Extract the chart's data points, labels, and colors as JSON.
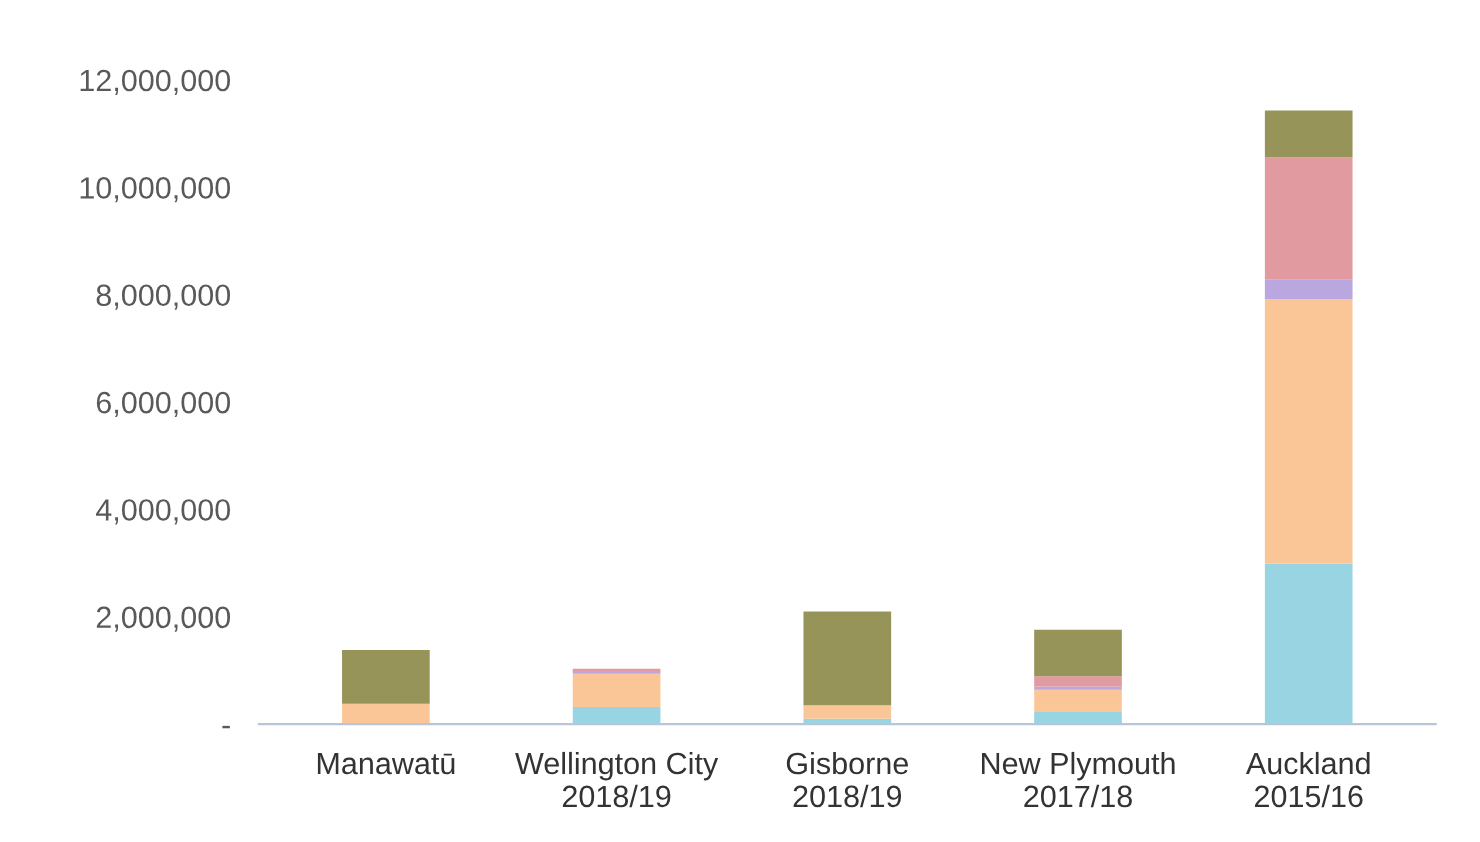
{
  "chart_data": {
    "type": "bar",
    "stacked": true,
    "categories": [
      "Manawatū",
      "Wellington City\n2018/19",
      "Gisborne\n2018/19",
      "New Plymouth\n2017/18",
      "Auckland\n2015/16"
    ],
    "series": [
      {
        "color": "#8ecfe0",
        "values": [
          0,
          320000,
          100000,
          240000,
          2990000
        ]
      },
      {
        "color": "#fbc08c",
        "values": [
          380000,
          620000,
          250000,
          400000,
          4930000
        ]
      },
      {
        "color": "#b39ddb",
        "values": [
          0,
          50000,
          0,
          60000,
          370000
        ]
      },
      {
        "color": "#de8f96",
        "values": [
          0,
          40000,
          0,
          190000,
          2270000
        ]
      },
      {
        "color": "#8b8847",
        "values": [
          1000000,
          0,
          1750000,
          870000,
          870000
        ]
      }
    ],
    "ylim": [
      0,
      12000000
    ],
    "yticks": [
      {
        "value": 0,
        "label": "-"
      },
      {
        "value": 2000000,
        "label": "2,000,000"
      },
      {
        "value": 4000000,
        "label": "4,000,000"
      },
      {
        "value": 6000000,
        "label": "6,000,000"
      },
      {
        "value": 8000000,
        "label": "8,000,000"
      },
      {
        "value": 10000000,
        "label": "10,000,000"
      },
      {
        "value": 12000000,
        "label": "12,000,000"
      }
    ],
    "grid": false
  }
}
